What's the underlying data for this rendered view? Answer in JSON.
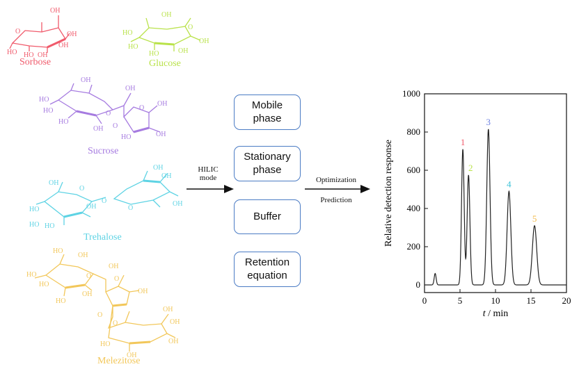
{
  "sugars": [
    {
      "name": "Sorbose",
      "color": "#f05a6b"
    },
    {
      "name": "Glucose",
      "color": "#b9e24a"
    },
    {
      "name": "Sucrose",
      "color": "#a67be0"
    },
    {
      "name": "Trehalose",
      "color": "#5ed3e4"
    },
    {
      "name": "Melezitose",
      "color": "#f2c75a"
    }
  ],
  "hilic_arrow": {
    "line1": "HILIC",
    "line2": "mode"
  },
  "factors": [
    {
      "label": "Mobile\nphase"
    },
    {
      "label": "Stationary\nphase"
    },
    {
      "label": "Buffer"
    },
    {
      "label": "Retention\nequation"
    }
  ],
  "box_border_color": "#4a7bc4",
  "output_arrow": {
    "top": "Optimization",
    "bottom": "Prediction"
  },
  "chart_data": {
    "type": "line",
    "xlabel_italic": "t",
    "xlabel_rest": " / min",
    "ylabel": "Relative detection response",
    "xlim": [
      0,
      20
    ],
    "ylim": [
      0,
      1000
    ],
    "xticks": [
      0,
      5,
      10,
      15,
      20
    ],
    "yticks": [
      0,
      200,
      400,
      600,
      800,
      1000
    ],
    "baseline": 0,
    "peaks": [
      {
        "label": "",
        "t": 1.5,
        "height": 60,
        "color": "#333333"
      },
      {
        "label": "1",
        "t": 5.4,
        "height": 710,
        "color": "#f05a6b"
      },
      {
        "label": "2",
        "t": 6.2,
        "height": 575,
        "color": "#b9e24a"
      },
      {
        "label": "3",
        "t": 9.0,
        "height": 815,
        "color": "#6b7fe0"
      },
      {
        "label": "4",
        "t": 11.9,
        "height": 490,
        "color": "#3ec3d8"
      },
      {
        "label": "5",
        "t": 15.5,
        "height": 310,
        "color": "#f2b94a"
      }
    ]
  }
}
